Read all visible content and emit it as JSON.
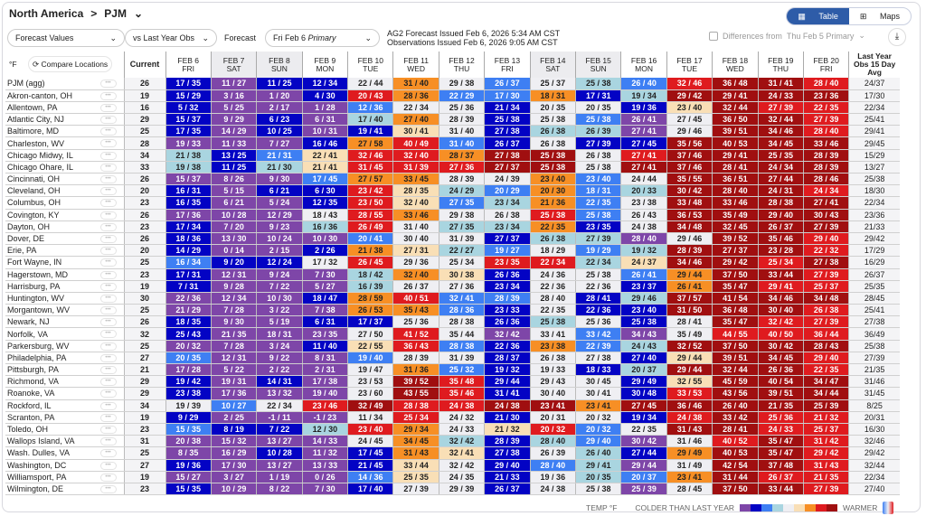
{
  "breadcrumb": {
    "region": "North America",
    "separator": ">",
    "market": "PJM"
  },
  "view": {
    "table": "Table",
    "maps": "Maps"
  },
  "controls": {
    "values": "Forecast Values",
    "compare": "vs Last Year Obs",
    "forecast_label": "Forecast",
    "forecast_day": "Fri Feb 6",
    "forecast_run": "Primary",
    "issued": "AG2 Forecast Issued Feb 6, 2026 5:34 AM CST",
    "observed": "Observations Issued Feb 6, 2026 9:05 AM CST",
    "differences": "Differences from",
    "diff_from": "Thu Feb 5 Primary"
  },
  "table": {
    "unit": "°F",
    "compare_locations": "Compare Locations",
    "current": "Current",
    "last_year": "Last Year Obs 15 Day Avg",
    "days": [
      [
        "FEB 6",
        "FRI"
      ],
      [
        "FEB 7",
        "SAT"
      ],
      [
        "FEB 8",
        "SUN"
      ],
      [
        "FEB 9",
        "MON"
      ],
      [
        "FEB 10",
        "TUE"
      ],
      [
        "FEB 11",
        "WED"
      ],
      [
        "FEB 12",
        "THU"
      ],
      [
        "FEB 13",
        "FRI"
      ],
      [
        "FEB 14",
        "SAT"
      ],
      [
        "FEB 15",
        "SUN"
      ],
      [
        "FEB 16",
        "MON"
      ],
      [
        "FEB 17",
        "TUE"
      ],
      [
        "FEB 18",
        "WED"
      ],
      [
        "FEB 19",
        "THU"
      ],
      [
        "FEB 20",
        "FRI"
      ]
    ],
    "rows": [
      [
        "PJM (agg)",
        "26",
        "DB 17/35,P 11/27,DB 11/25,DB 12/34,W 22/44,O 31/40,W 29/38,B 26/37,W 25/37,LB 25/38,B 26/40,R 32/46,DR 36/48,DR 31/41,R 28/40",
        "24/37"
      ],
      [
        "Akron-canton, OH",
        "19",
        "DB 15/29,P 3/16,P 1/20,DB 4/30,R 20/43,O 28/36,B 22/29,B 17/30,O 18/31,DB 17/31,LB 19/34,DR 29/42,DR 29/41,DR 24/33,DR 23/36",
        "17/30"
      ],
      [
        "Allentown, PA",
        "16",
        "DB 5/32,P 5/25,P 2/17,P 1/28,B 12/36,W 22/34,W 25/36,DB 21/34,W 20/35,W 20/35,DB 19/36,T 23/40,DR 32/44,R 27/39,R 22/35",
        "22/34"
      ],
      [
        "Atlantic City, NJ",
        "29",
        "DB 15/37,P 9/29,DB 6/23,P 6/31,LB 17/40,O 27/40,W 28/39,DB 25/38,W 25/38,B 25/38,P 26/41,W 27/45,DR 36/50,DR 32/44,R 27/39",
        "25/41"
      ],
      [
        "Baltimore, MD",
        "25",
        "DB 17/35,P 14/29,DB 10/25,P 10/31,DB 19/41,T 30/41,W 31/40,DB 27/38,LB 26/38,LB 26/39,P 27/41,W 29/46,DR 39/51,DR 34/46,R 28/40",
        "29/41"
      ],
      [
        "Charleston, WV",
        "28",
        "P 19/33,P 11/33,P 7/27,DB 16/46,O 27/58,R 40/49,B 31/40,DB 26/37,W 26/38,DB 27/39,DB 27/45,DR 35/56,DR 40/53,DR 34/45,DR 33/46",
        "29/45"
      ],
      [
        "Chicago Midwy, IL",
        "34",
        "LB 21/38,DB 13/25,B 21/31,T 22/41,R 32/46,R 32/40,O 28/37,DR 27/38,DR 25/38,W 26/38,R 27/41,DR 37/46,DR 29/41,DR 25/35,DR 28/39",
        "15/29"
      ],
      [
        "Chicago Ohare, IL",
        "33",
        "LB 19/38,DB 11/25,LB 21/30,T 21/41,R 31/45,R 31/39,R 27/36,DR 27/37,DR 25/38,W 25/38,DR 27/41,DR 37/46,DR 28/41,DR 24/34,DR 28/39",
        "13/27"
      ],
      [
        "Cincinnati, OH",
        "26",
        "P 15/37,P 8/26,P 9/30,B 17/45,O 27/57,O 33/45,W 28/39,W 24/39,O 23/40,B 23/40,W 24/44,DR 35/55,DR 36/51,DR 27/44,DR 28/46",
        "25/38"
      ],
      [
        "Cleveland, OH",
        "20",
        "DB 16/31,P 5/15,DB 6/21,DB 6/30,R 23/42,T 28/35,LB 24/29,B 20/29,O 20/30,B 18/31,LB 20/33,DR 30/42,DR 28/40,DR 24/31,R 24/34",
        "18/30"
      ],
      [
        "Columbus, OH",
        "23",
        "DB 16/35,P 6/21,P 5/24,DB 12/35,R 23/50,T 32/40,B 27/35,LB 23/34,O 21/36,B 22/35,W 23/38,DR 33/48,DR 33/46,DR 28/38,DR 27/41",
        "22/34"
      ],
      [
        "Covington, KY",
        "26",
        "P 17/36,P 10/28,P 12/29,W 18/43,R 28/55,O 33/46,W 29/38,W 26/38,R 25/38,B 25/38,W 26/43,DR 36/53,DR 35/49,DR 29/40,DR 30/43",
        "23/36"
      ],
      [
        "Dayton, OH",
        "23",
        "DB 17/34,P 7/20,P 9/23,LB 16/36,R 26/49,W 31/40,LB 27/35,LB 23/34,O 22/35,DB 23/35,W 24/38,DR 34/48,DR 32/45,DR 26/37,DR 27/39",
        "21/33"
      ],
      [
        "Dover, DE",
        "26",
        "DB 18/36,P 13/30,P 10/24,P 10/30,B 20/41,W 30/40,W 31/39,DB 27/37,LB 26/38,LB 27/39,P 28/40,W 29/46,DR 39/52,DR 35/46,R 29/40",
        "29/42"
      ],
      [
        "Erie, PA",
        "20",
        "DB 14/29,P 0/14,P 2/15,DB 2/26,O 21/38,T 27/31,LB 22/27,B 19/27,W 18/29,B 19/29,LB 19/32,DR 28/39,DR 27/37,DR 23/28,R 22/32",
        "17/29"
      ],
      [
        "Fort Wayne, IN",
        "25",
        "B 16/34,DB 9/20,DB 12/24,W 17/32,R 26/45,W 29/36,W 25/34,R 23/35,R 22/34,LB 22/34,T 24/37,DR 34/46,DR 29/42,R 25/34,DR 27/38",
        "16/29"
      ],
      [
        "Hagerstown, MD",
        "23",
        "DB 17/31,P 12/31,P 9/24,P 7/30,LB 18/42,O 32/40,T 30/38,DB 26/36,W 24/36,W 25/38,B 26/41,O 29/44,DR 37/50,DR 33/44,R 27/39",
        "26/37"
      ],
      [
        "Harrisburg, PA",
        "19",
        "DB 7/31,P 9/28,P 7/22,P 5/27,LB 16/39,W 26/37,W 27/36,DB 23/34,W 22/36,W 22/36,DB 23/37,O 26/41,DR 35/47,R 29/41,R 25/37",
        "25/35"
      ],
      [
        "Huntington, WV",
        "30",
        "P 22/36,P 12/34,P 10/30,DB 18/47,O 28/59,R 40/51,B 32/41,B 28/39,W 28/40,DB 28/41,LB 29/46,DR 37/57,DR 41/54,DR 34/46,DR 34/48",
        "28/45"
      ],
      [
        "Morgantown, WV",
        "25",
        "P 21/29,P 7/28,P 3/22,P 7/38,O 26/53,O 35/43,B 28/36,DB 23/33,W 22/35,DB 22/36,DB 23/40,DR 31/50,DR 36/48,DR 30/40,R 26/38",
        "25/41"
      ],
      [
        "Newark, NJ",
        "26",
        "DB 18/35,P 9/30,P 5/19,DB 6/31,DB 17/37,W 25/36,W 28/38,DB 26/36,LB 25/38,W 25/36,DB 25/38,W 28/41,DR 35/47,R 32/42,R 27/39",
        "27/38"
      ],
      [
        "Norfolk, VA",
        "32",
        "DB 25/43,P 21/35,P 18/31,P 23/35,W 27/50,R 41/52,W 35/44,P 32/42,W 33/41,B 33/42,P 34/43,W 35/49,R 44/55,R 40/50,R 36/44",
        "36/49"
      ],
      [
        "Parkersburg, WV",
        "25",
        "P 20/32,P 7/28,P 3/24,DB 11/40,T 22/55,R 36/43,B 28/38,DB 22/36,O 23/38,B 22/39,LB 24/43,DR 32/52,DR 37/50,DR 30/42,DR 28/43",
        "25/38"
      ],
      [
        "Philadelphia, PA",
        "27",
        "B 20/35,P 12/31,P 9/22,P 8/31,B 19/40,W 28/39,W 31/39,DB 28/37,W 26/38,W 27/38,DB 27/40,T 29/44,DR 39/51,DR 34/45,R 29/40",
        "27/39"
      ],
      [
        "Pittsburgh, PA",
        "21",
        "P 17/28,P 5/22,P 2/22,P 2/31,W 19/47,O 31/36,B 25/32,DB 19/32,W 19/33,DB 18/33,LB 20/37,DR 29/44,DR 32/44,DR 26/36,R 22/35",
        "21/35"
      ],
      [
        "Richmond, VA",
        "29",
        "DB 19/42,P 19/31,DB 14/31,P 17/38,W 23/53,DR 39/52,R 35/48,DB 29/44,W 29/43,W 30/45,DB 29/49,T 32/55,DR 45/59,DR 40/54,DR 34/47",
        "31/46"
      ],
      [
        "Roanoke, VA",
        "29",
        "DB 23/38,P 17/36,P 13/32,P 19/40,W 23/60,DR 43/55,R 35/46,DB 31/41,W 30/40,W 30/41,DB 30/48,R 33/53,DR 43/56,DR 39/51,DR 34/44",
        "31/45"
      ],
      [
        "Rockford, IL",
        "34",
        "W 19/39,B 10/27,W 22/34,R 23/46,DR 32/49,R 28/38,R 24/38,DR 24/38,DR 23/41,O 23/41,DR 27/45,DR 36/46,DR 26/40,DR 21/35,DR 25/39",
        "8/25"
      ],
      [
        "Scranton, PA",
        "19",
        "DB 9/29,P 2/25,P -1/11,P -1/23,W 11/34,R 25/34,W 24/32,DB 21/30,W 20/31,W 20/32,DB 19/34,R 24/38,DR 33/42,R 25/36,R 21/32",
        "20/31"
      ],
      [
        "Toledo, OH",
        "23",
        "B 15/35,DB 8/19,DB 7/22,LB 12/30,R 23/40,O 29/34,W 24/33,T 21/32,R 20/32,B 20/32,W 22/35,DR 31/43,DR 28/41,R 24/33,R 25/37",
        "16/30"
      ],
      [
        "Wallops Island, VA",
        "31",
        "P 20/38,P 15/32,P 13/27,P 14/33,W 24/45,O 34/45,LB 32/42,DB 28/39,LB 28/40,B 29/40,P 30/42,W 31/46,R 40/52,DR 35/47,R 31/42",
        "32/46"
      ],
      [
        "Wash. Dulles, VA",
        "25",
        "P 8/35,P 16/29,DB 10/28,P 11/32,DB 17/45,O 31/43,T 32/41,DB 27/38,W 26/39,LB 26/40,DB 27/44,O 29/49,DR 40/53,DR 35/47,R 29/42",
        "29/42"
      ],
      [
        "Washington, DC",
        "27",
        "DB 19/36,P 17/30,P 13/27,P 13/33,DB 21/45,T 33/44,W 32/42,DB 29/40,B 28/40,LB 29/41,P 29/44,W 31/49,DR 42/54,DR 37/48,R 31/43",
        "32/44"
      ],
      [
        "Williamsport, PA",
        "19",
        "P 15/27,P 3/27,P 1/19,P 0/26,B 14/36,T 25/35,W 24/35,DB 21/33,W 19/36,LB 20/35,B 20/37,O 23/41,DR 31/44,R 26/37,R 21/35",
        "22/34"
      ],
      [
        "Wilmington, DE",
        "23",
        "DB 15/35,P 10/29,P 8/22,P 7/30,DB 17/40,W 27/39,W 29/39,DB 26/37,W 24/38,W 25/38,P 25/39,W 28/45,DR 37/50,DR 33/44,R 27/39",
        "27/40"
      ]
    ]
  },
  "legend": {
    "temp": "TEMP °F",
    "colder": "COLDER THAN LAST YEAR",
    "warmer": "WARMER",
    "colors": {
      "P": "#7e46a8",
      "DB": "#0303c4",
      "B": "#3e7ff3",
      "LB": "#a9d5e0",
      "W": "#efeff3",
      "T": "#f9dfb6",
      "O": "#f78f25",
      "R": "#df1b1f",
      "DR": "#a00f10"
    }
  }
}
